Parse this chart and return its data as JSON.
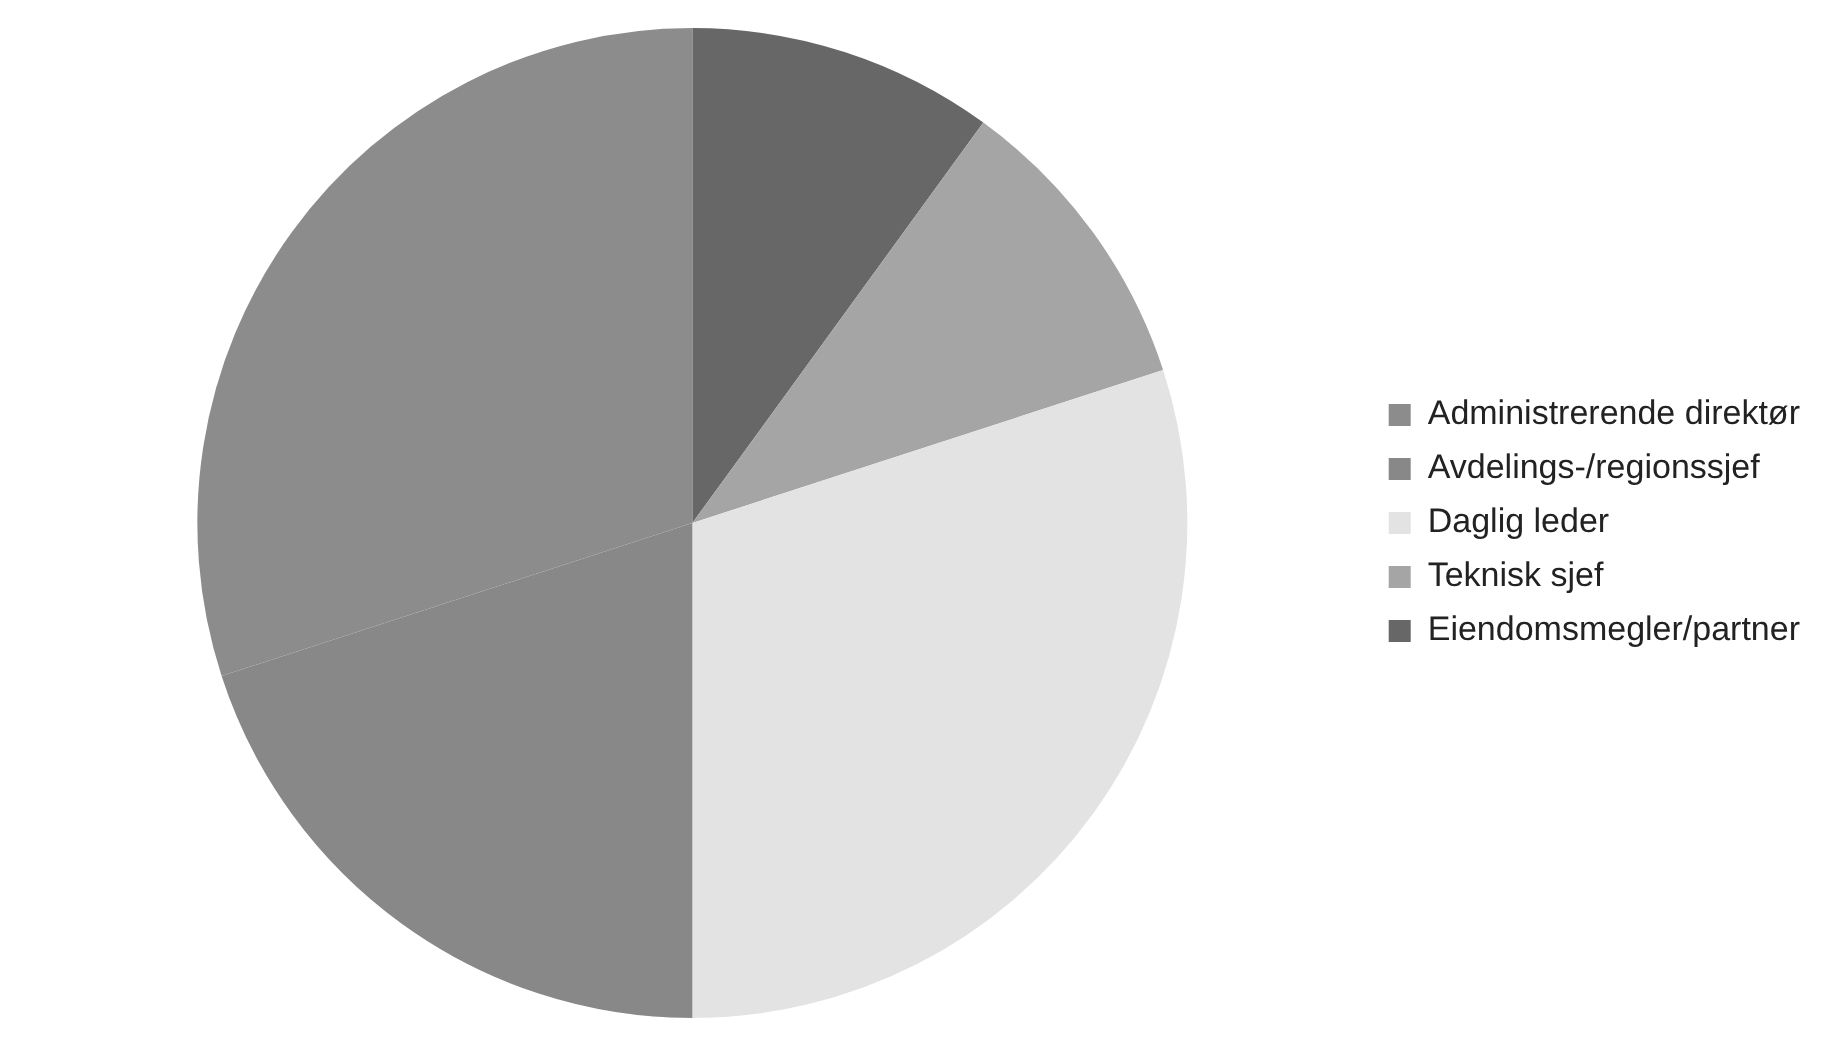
{
  "chart_data": {
    "type": "pie",
    "categories": [
      "Eiendomsmegler/partner",
      "Teknisk sjef",
      "Daglig leder",
      "Avdelings-/regionssjef",
      "Administrerende direktør"
    ],
    "values": [
      10,
      10,
      30,
      20,
      30
    ],
    "colors": [
      "#676767",
      "#a5a5a5",
      "#e3e3e3",
      "#888888",
      "#8c8c8c"
    ],
    "legend": "right"
  }
}
